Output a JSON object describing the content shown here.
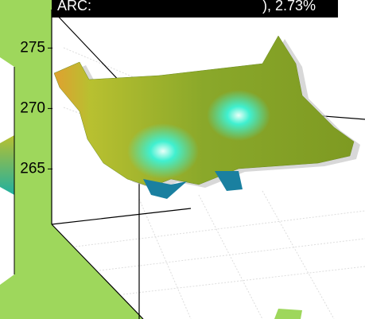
{
  "chart_data": {
    "type": "surface3d",
    "title": "ARC:",
    "title_suffix": "), 2.73%",
    "zlim": [
      262,
      277
    ],
    "zticks": [
      265,
      270,
      275
    ]
  }
}
